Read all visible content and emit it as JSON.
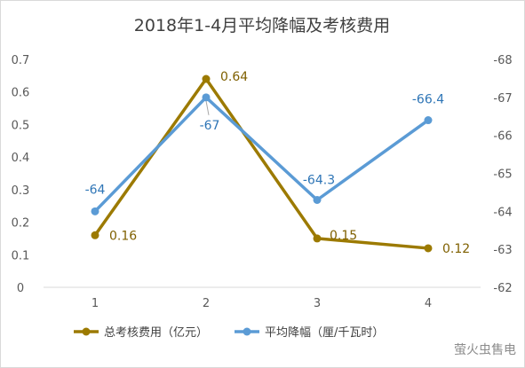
{
  "chart_data": {
    "type": "line",
    "title": "2018年1-4月平均降幅及考核费用",
    "categories": [
      "1",
      "2",
      "3",
      "4"
    ],
    "y_left": {
      "ylim": [
        0,
        0.7
      ],
      "ticks": [
        "0",
        "0.1",
        "0.2",
        "0.3",
        "0.4",
        "0.5",
        "0.6",
        "0.7"
      ]
    },
    "y_right": {
      "ylim": [
        -62,
        -68
      ],
      "ticks": [
        "-62",
        "-63",
        "-64",
        "-65",
        "-66",
        "-67",
        "-68"
      ]
    },
    "series": [
      {
        "name": "总考核费用（亿元）",
        "axis": "left",
        "color": "#9c7a00",
        "values": [
          0.16,
          0.64,
          0.15,
          0.12
        ],
        "labels": [
          "0.16",
          "0.64",
          "0.15",
          "0.12"
        ]
      },
      {
        "name": "平均降幅（厘/千瓦时）",
        "axis": "right",
        "color": "#5b9bd5",
        "values": [
          -64,
          -67,
          -64.3,
          -66.4
        ],
        "labels": [
          "-64",
          "-67",
          "-64.3",
          "-66.4"
        ]
      }
    ],
    "grid": false,
    "legend": "bottom"
  },
  "watermark": "萤火虫售电"
}
